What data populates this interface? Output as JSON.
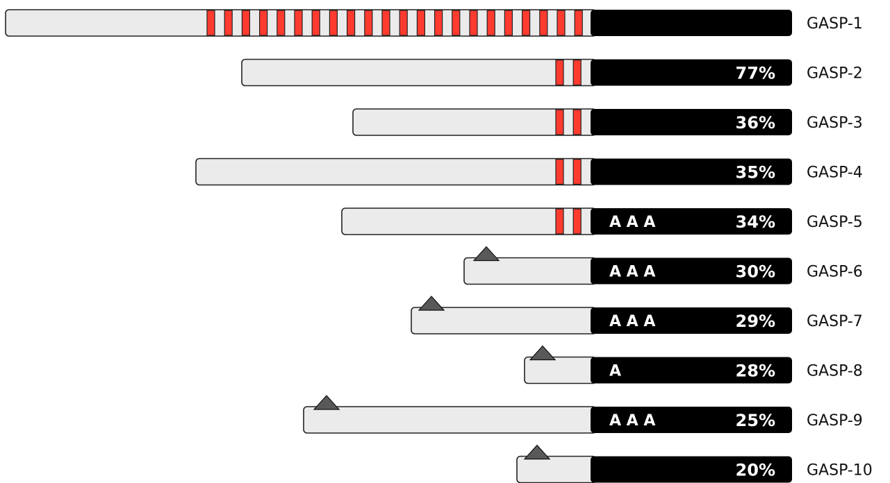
{
  "colors": {
    "stripe": "#ff3b30",
    "left_segment": "#ebebeb",
    "right_segment": "#000000",
    "marker": "#595959"
  },
  "rows": [
    {
      "name": "GASP-1",
      "identity": "",
      "a_marks": "",
      "stripes": 22,
      "marker": false
    },
    {
      "name": "GASP-2",
      "identity": "77%",
      "a_marks": "",
      "stripes": 2,
      "marker": false
    },
    {
      "name": "GASP-3",
      "identity": "36%",
      "a_marks": "",
      "stripes": 2,
      "marker": false
    },
    {
      "name": "GASP-4",
      "identity": "35%",
      "a_marks": "",
      "stripes": 2,
      "marker": false
    },
    {
      "name": "GASP-5",
      "identity": "34%",
      "a_marks": "A A A",
      "stripes": 2,
      "marker": false
    },
    {
      "name": "GASP-6",
      "identity": "30%",
      "a_marks": "A A A",
      "stripes": 0,
      "marker": true
    },
    {
      "name": "GASP-7",
      "identity": "29%",
      "a_marks": "A A A",
      "stripes": 0,
      "marker": true
    },
    {
      "name": "GASP-8",
      "identity": "28%",
      "a_marks": "A",
      "stripes": 0,
      "marker": true
    },
    {
      "name": "GASP-9",
      "identity": "25%",
      "a_marks": "A A A",
      "stripes": 0,
      "marker": true
    },
    {
      "name": "GASP-10",
      "identity": "20%",
      "a_marks": "",
      "stripes": 0,
      "marker": true
    }
  ]
}
